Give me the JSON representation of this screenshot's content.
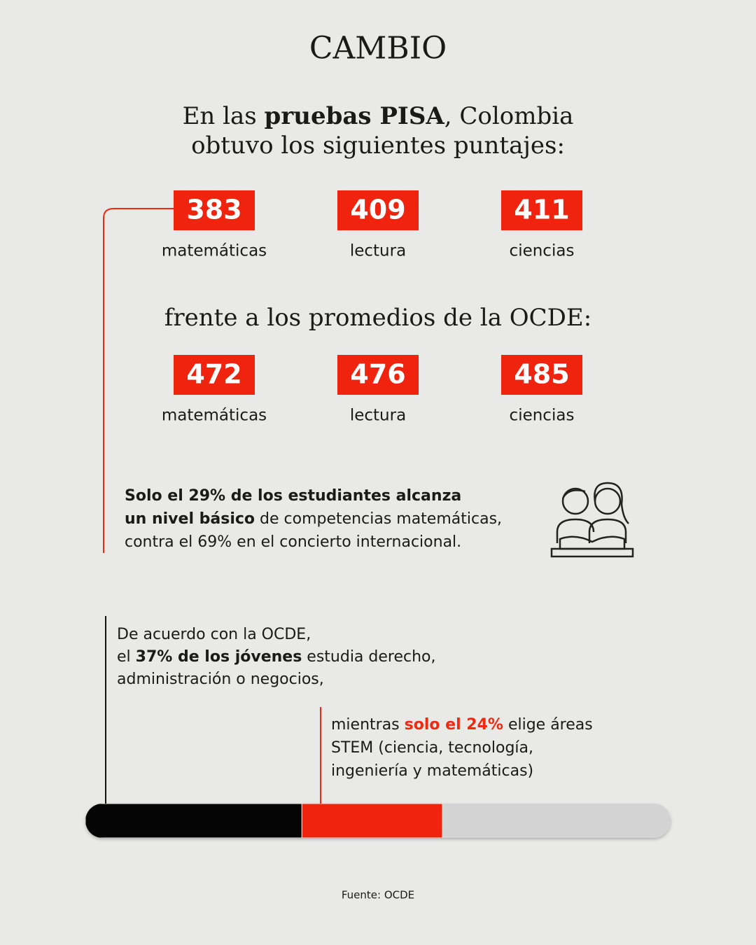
{
  "logo": "CAMBIO",
  "intro": {
    "lines": [
      [
        {
          "text": "En las "
        },
        {
          "text": "pruebas PISA",
          "bold": true
        },
        {
          "text": ", Colombia"
        }
      ],
      [
        {
          "text": "obtuvo los siguientes puntajes:"
        }
      ]
    ]
  },
  "colombia_scores": [
    {
      "value": 383,
      "label": "matemáticas"
    },
    {
      "value": 409,
      "label": "lectura"
    },
    {
      "value": 411,
      "label": "ciencias"
    }
  ],
  "comparison_heading": "frente a los promedios de la OCDE:",
  "ocde_scores": [
    {
      "value": 472,
      "label": "matemáticas"
    },
    {
      "value": 476,
      "label": "lectura"
    },
    {
      "value": 485,
      "label": "ciencias"
    }
  ],
  "basic_level_note": {
    "lines": [
      [
        {
          "text": "Solo el 29% de los estudiantes alcanza",
          "bold": true
        }
      ],
      [
        {
          "text": "un nivel básico",
          "bold": true
        },
        {
          "text": " de competencias matemáticas,"
        }
      ],
      [
        {
          "text": "contra el 69% en el concierto internacional."
        }
      ]
    ]
  },
  "careers_note": {
    "lines": [
      [
        {
          "text": "De acuerdo con la OCDE,"
        }
      ],
      [
        {
          "text": "el "
        },
        {
          "text": "37% de los jóvenes",
          "bold": true
        },
        {
          "text": " estudia derecho,"
        }
      ],
      [
        {
          "text": "administración o negocios,"
        }
      ]
    ]
  },
  "stem_note": {
    "lines": [
      [
        {
          "text": "mientras "
        },
        {
          "text": "solo el 24%",
          "bold": true,
          "color": "#ef2a10"
        },
        {
          "text": " elige áreas"
        }
      ],
      [
        {
          "text": "STEM (ciencia, tecnología,"
        }
      ],
      [
        {
          "text": "ingeniería y matemáticas)"
        }
      ]
    ]
  },
  "stem_bar": {
    "xlim": [
      0,
      100
    ],
    "track_color": "#d3d3d3",
    "segments": [
      {
        "value": 37,
        "color": "#050505"
      },
      {
        "value": 24,
        "color": "#f0230f"
      }
    ]
  },
  "source": "Fuente: OCDE"
}
